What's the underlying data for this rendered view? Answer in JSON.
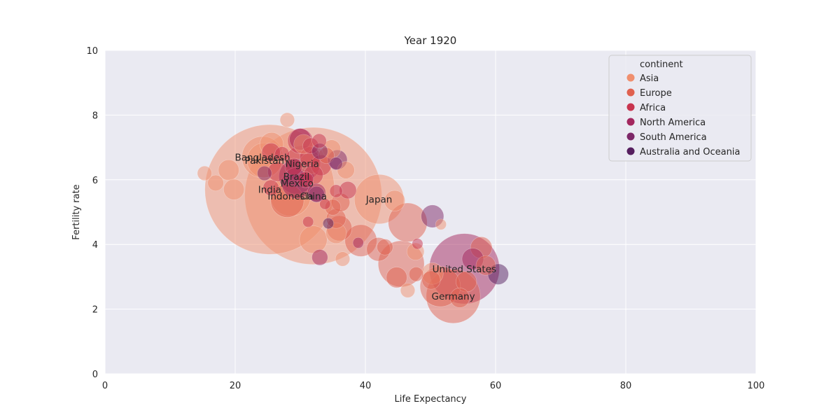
{
  "chart_data": {
    "type": "scatter",
    "title": "Year 1920",
    "xlabel": "Life Expectancy",
    "ylabel": "Fertility rate",
    "xlim": [
      0,
      100
    ],
    "ylim": [
      0,
      10
    ],
    "xticks": [
      "0",
      "20",
      "40",
      "60",
      "80",
      "100"
    ],
    "yticks": [
      "0",
      "2",
      "4",
      "6",
      "8",
      "10"
    ],
    "grid": true,
    "legend": {
      "title": "continent",
      "position": "top-right",
      "entries": [
        {
          "name": "Asia",
          "color": "#f08f6e"
        },
        {
          "name": "Europe",
          "color": "#e0614f"
        },
        {
          "name": "Africa",
          "color": "#c8354f"
        },
        {
          "name": "North America",
          "color": "#a3275e"
        },
        {
          "name": "South America",
          "color": "#7d2768"
        },
        {
          "name": "Australia and Oceania",
          "color": "#561f5f"
        }
      ]
    },
    "series": [
      {
        "name": "Asia",
        "color": "#f08f6e",
        "points": [
          {
            "x": 25.3,
            "y": 5.7,
            "size": 420,
            "label": "India"
          },
          {
            "x": 32.0,
            "y": 5.5,
            "size": 470,
            "label": "China"
          },
          {
            "x": 24.2,
            "y": 6.7,
            "size": 40,
            "label": "Bangladesh"
          },
          {
            "x": 24.5,
            "y": 6.6,
            "size": 28,
            "label": "Pakistan"
          },
          {
            "x": 42.1,
            "y": 5.4,
            "size": 58,
            "label": "Japan"
          },
          {
            "x": 28.5,
            "y": 5.5,
            "size": 38,
            "label": "Indonesia"
          },
          {
            "x": 15.3,
            "y": 6.2,
            "size": 4
          },
          {
            "x": 17.0,
            "y": 5.9,
            "size": 5
          },
          {
            "x": 19.0,
            "y": 6.3,
            "size": 9
          },
          {
            "x": 19.8,
            "y": 5.7,
            "size": 9
          },
          {
            "x": 25.6,
            "y": 7.1,
            "size": 12
          },
          {
            "x": 28.0,
            "y": 7.85,
            "size": 4
          },
          {
            "x": 30.5,
            "y": 7.1,
            "size": 8
          },
          {
            "x": 31.5,
            "y": 6.5,
            "size": 10
          },
          {
            "x": 32.0,
            "y": 4.15,
            "size": 17
          },
          {
            "x": 34.8,
            "y": 6.95,
            "size": 7
          },
          {
            "x": 35.5,
            "y": 4.35,
            "size": 9
          },
          {
            "x": 37.0,
            "y": 6.3,
            "size": 6
          },
          {
            "x": 36.5,
            "y": 3.55,
            "size": 4
          },
          {
            "x": 44.5,
            "y": 5.35,
            "size": 9
          },
          {
            "x": 47.7,
            "y": 3.78,
            "size": 6
          },
          {
            "x": 50.3,
            "y": 3.1,
            "size": 10
          },
          {
            "x": 46.5,
            "y": 2.58,
            "size": 4
          },
          {
            "x": 51.6,
            "y": 4.62,
            "size": 2
          }
        ]
      },
      {
        "name": "Europe",
        "color": "#e0614f",
        "points": [
          {
            "x": 53.5,
            "y": 2.4,
            "size": 70,
            "label": "Germany"
          },
          {
            "x": 45.5,
            "y": 3.4,
            "size": 50
          },
          {
            "x": 46.5,
            "y": 4.68,
            "size": 35
          },
          {
            "x": 39.3,
            "y": 4.12,
            "size": 23
          },
          {
            "x": 51.5,
            "y": 2.7,
            "size": 38
          },
          {
            "x": 42.0,
            "y": 3.85,
            "size": 12
          },
          {
            "x": 44.8,
            "y": 2.98,
            "size": 9
          },
          {
            "x": 36.0,
            "y": 4.5,
            "size": 14
          },
          {
            "x": 35.5,
            "y": 4.8,
            "size": 8
          },
          {
            "x": 36.2,
            "y": 5.3,
            "size": 7
          },
          {
            "x": 35.0,
            "y": 5.15,
            "size": 5
          },
          {
            "x": 43.0,
            "y": 3.92,
            "size": 5
          },
          {
            "x": 54.5,
            "y": 2.35,
            "size": 8
          },
          {
            "x": 55.5,
            "y": 2.85,
            "size": 9
          },
          {
            "x": 57.8,
            "y": 3.9,
            "size": 10
          },
          {
            "x": 58.5,
            "y": 3.35,
            "size": 8
          },
          {
            "x": 47.8,
            "y": 3.08,
            "size": 4
          },
          {
            "x": 50.1,
            "y": 2.9,
            "size": 7
          },
          {
            "x": 28.0,
            "y": 5.35,
            "size": 25
          },
          {
            "x": 34.0,
            "y": 6.75,
            "size": 5
          }
        ]
      },
      {
        "name": "Africa",
        "color": "#c8354f",
        "points": [
          {
            "x": 30.3,
            "y": 6.5,
            "size": 30,
            "label": "Nigeria"
          },
          {
            "x": 30.0,
            "y": 7.2,
            "size": 14
          },
          {
            "x": 26.5,
            "y": 6.25,
            "size": 8
          },
          {
            "x": 25.5,
            "y": 6.85,
            "size": 7
          },
          {
            "x": 29.0,
            "y": 6.4,
            "size": 6
          },
          {
            "x": 31.5,
            "y": 6.7,
            "size": 9
          },
          {
            "x": 32.0,
            "y": 6.15,
            "size": 8
          },
          {
            "x": 33.2,
            "y": 6.45,
            "size": 9
          },
          {
            "x": 25.5,
            "y": 5.75,
            "size": 5
          },
          {
            "x": 31.6,
            "y": 7.05,
            "size": 5
          },
          {
            "x": 32.9,
            "y": 7.2,
            "size": 4
          },
          {
            "x": 27.2,
            "y": 6.8,
            "size": 4
          },
          {
            "x": 30.8,
            "y": 6.0,
            "size": 5
          },
          {
            "x": 37.3,
            "y": 5.68,
            "size": 6
          },
          {
            "x": 35.5,
            "y": 5.65,
            "size": 3
          },
          {
            "x": 31.2,
            "y": 4.7,
            "size": 2
          },
          {
            "x": 33.8,
            "y": 5.25,
            "size": 2
          },
          {
            "x": 48.0,
            "y": 4.02,
            "size": 2
          }
        ]
      },
      {
        "name": "North America",
        "color": "#a3275e",
        "points": [
          {
            "x": 55.2,
            "y": 3.25,
            "size": 120,
            "label": "United States"
          },
          {
            "x": 29.5,
            "y": 5.9,
            "size": 22,
            "label": "Mexico"
          },
          {
            "x": 56.5,
            "y": 3.55,
            "size": 10
          },
          {
            "x": 30.0,
            "y": 7.25,
            "size": 10
          },
          {
            "x": 32.5,
            "y": 5.6,
            "size": 7
          },
          {
            "x": 33.0,
            "y": 3.6,
            "size": 5
          },
          {
            "x": 38.9,
            "y": 4.05,
            "size": 2
          }
        ]
      },
      {
        "name": "South America",
        "color": "#7d2768",
        "points": [
          {
            "x": 29.4,
            "y": 6.1,
            "size": 28,
            "label": "Brazil"
          },
          {
            "x": 50.3,
            "y": 4.87,
            "size": 11
          },
          {
            "x": 35.7,
            "y": 6.62,
            "size": 8
          },
          {
            "x": 33.0,
            "y": 6.88,
            "size": 5
          },
          {
            "x": 32.5,
            "y": 5.55,
            "size": 5
          },
          {
            "x": 24.5,
            "y": 6.2,
            "size": 4
          },
          {
            "x": 35.5,
            "y": 6.5,
            "size": 3
          }
        ]
      },
      {
        "name": "Australia and Oceania",
        "color": "#561f5f",
        "points": [
          {
            "x": 60.4,
            "y": 3.08,
            "size": 9
          },
          {
            "x": 34.3,
            "y": 4.65,
            "size": 2
          }
        ]
      }
    ]
  }
}
